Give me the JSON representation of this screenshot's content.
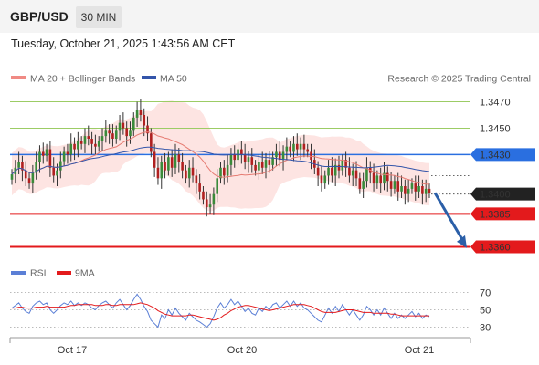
{
  "header": {
    "symbol": "GBP/USD",
    "timeframe": "30 MIN",
    "timestamp": "Tuesday, October 21, 2025 1:43:56 AM CET"
  },
  "legend": {
    "bollinger": "MA 20 + Bollinger Bands",
    "ma50": "MA 50",
    "credit": "Research © 2025 Trading Central",
    "rsi": "RSI",
    "rsi_ma": "9MA"
  },
  "colors": {
    "bull": "#3a8a3a",
    "bear": "#b02020",
    "ma20": "#e67c73",
    "band_fill": "#fde4e2",
    "ma50": "#3355aa",
    "resistance": "#9ccc65",
    "pivot": "#2a6fe0",
    "support": "#e31a1c",
    "rsi": "#5b7fd6",
    "rsi_ma": "#e31a1c",
    "arrow": "#2b5fa8"
  },
  "chart_data": {
    "type": "candlestick",
    "ylim": [
      1.3352,
      1.3478
    ],
    "levels": [
      {
        "label": "1.3470",
        "value": 1.347,
        "kind": "resistance"
      },
      {
        "label": "1.3450",
        "value": 1.345,
        "kind": "resistance"
      },
      {
        "label": "1.3430",
        "value": 1.343,
        "kind": "pivot"
      },
      {
        "label": "1.3400",
        "value": 1.34,
        "kind": "last"
      },
      {
        "label": "1.3385",
        "value": 1.3385,
        "kind": "support"
      },
      {
        "label": "1.3360",
        "value": 1.336,
        "kind": "support"
      }
    ],
    "forecast": {
      "from": 1.3401,
      "to": 1.3359
    },
    "x_ticks": [
      "Oct 17",
      "Oct 20",
      "Oct 21"
    ],
    "close": [
      1.3415,
      1.342,
      1.3424,
      1.3418,
      1.3412,
      1.3408,
      1.3416,
      1.3424,
      1.3432,
      1.3429,
      1.3434,
      1.342,
      1.3414,
      1.3418,
      1.3425,
      1.3432,
      1.343,
      1.3438,
      1.3434,
      1.344,
      1.3438,
      1.3444,
      1.3442,
      1.3438,
      1.3436,
      1.344,
      1.3444,
      1.3448,
      1.3446,
      1.3442,
      1.3448,
      1.3454,
      1.345,
      1.3444,
      1.3448,
      1.3458,
      1.3464,
      1.346,
      1.3452,
      1.3446,
      1.3432,
      1.342,
      1.3412,
      1.3424,
      1.3418,
      1.3428,
      1.342,
      1.343,
      1.3424,
      1.3418,
      1.3412,
      1.342,
      1.3414,
      1.3408,
      1.3402,
      1.3396,
      1.339,
      1.3392,
      1.34,
      1.3412,
      1.342,
      1.3414,
      1.3422,
      1.343,
      1.3426,
      1.3434,
      1.343,
      1.3424,
      1.3428,
      1.3422,
      1.3418,
      1.3424,
      1.342,
      1.3426,
      1.3422,
      1.3428,
      1.3432,
      1.3426,
      1.3432,
      1.3436,
      1.3432,
      1.3438,
      1.3434,
      1.3438,
      1.3434,
      1.3432,
      1.3426,
      1.342,
      1.3414,
      1.3408,
      1.3414,
      1.342,
      1.3414,
      1.3422,
      1.3418,
      1.3426,
      1.342,
      1.3414,
      1.3418,
      1.3412,
      1.3404,
      1.341,
      1.342,
      1.3416,
      1.3408,
      1.3414,
      1.3408,
      1.3416,
      1.341,
      1.3404,
      1.341,
      1.3402,
      1.3406,
      1.34,
      1.3404,
      1.3408,
      1.3402,
      1.3406,
      1.34,
      1.3404,
      1.3401
    ],
    "rsi": {
      "ticks": [
        70,
        50,
        30
      ],
      "ylim": [
        20,
        80
      ],
      "rsi": [
        52,
        55,
        58,
        52,
        48,
        46,
        54,
        58,
        60,
        56,
        58,
        50,
        46,
        50,
        55,
        58,
        56,
        60,
        55,
        58,
        55,
        58,
        56,
        52,
        50,
        55,
        58,
        60,
        56,
        52,
        58,
        62,
        56,
        50,
        55,
        62,
        68,
        62,
        54,
        48,
        38,
        34,
        30,
        44,
        40,
        50,
        44,
        52,
        46,
        42,
        38,
        46,
        42,
        38,
        36,
        33,
        30,
        34,
        42,
        52,
        58,
        52,
        56,
        62,
        56,
        60,
        54,
        48,
        52,
        46,
        44,
        52,
        48,
        54,
        50,
        56,
        58,
        52,
        56,
        60,
        54,
        60,
        54,
        58,
        52,
        50,
        46,
        42,
        38,
        36,
        44,
        52,
        46,
        54,
        48,
        56,
        50,
        44,
        50,
        44,
        38,
        44,
        54,
        50,
        44,
        50,
        44,
        52,
        46,
        40,
        46,
        40,
        44,
        40,
        44,
        48,
        42,
        46,
        40,
        44,
        42
      ],
      "ma": [
        52,
        52,
        53,
        53,
        52,
        52,
        52,
        53,
        53,
        53,
        54,
        53,
        53,
        53,
        53,
        53,
        54,
        55,
        55,
        56,
        56,
        56,
        56,
        56,
        55,
        55,
        55,
        56,
        56,
        55,
        55,
        56,
        56,
        56,
        56,
        56,
        57,
        58,
        57,
        56,
        54,
        52,
        49,
        47,
        45,
        44,
        43,
        43,
        43,
        43,
        43,
        44,
        44,
        43,
        42,
        41,
        40,
        39,
        38,
        39,
        41,
        44,
        46,
        49,
        51,
        53,
        54,
        55,
        55,
        54,
        53,
        52,
        51,
        50,
        49,
        50,
        51,
        52,
        53,
        54,
        55,
        56,
        56,
        56,
        56,
        55,
        54,
        52,
        50,
        48,
        47,
        47,
        47,
        47,
        48,
        49,
        50,
        50,
        50,
        49,
        48,
        47,
        47,
        47,
        46,
        46,
        46,
        46,
        46,
        45,
        45,
        44,
        43,
        43,
        43,
        43,
        43,
        43,
        43,
        43,
        43
      ]
    }
  }
}
